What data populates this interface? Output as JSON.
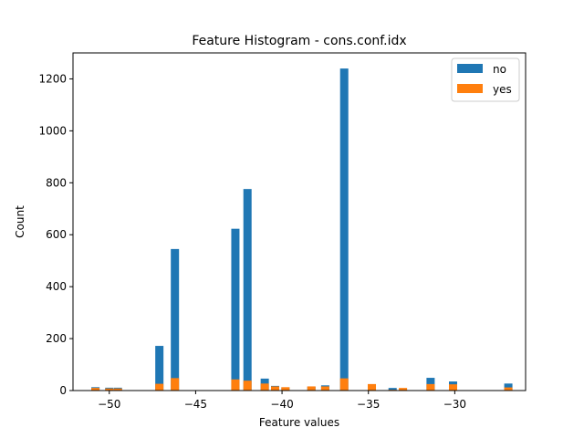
{
  "chart_data": {
    "type": "bar",
    "title": "Feature Histogram - cons.conf.idx",
    "xlabel": "Feature values",
    "ylabel": "Count",
    "xlim": [
      -52.1,
      -25.9
    ],
    "ylim": [
      0,
      1300
    ],
    "xticks": [
      -50,
      -45,
      -40,
      -35,
      -30
    ],
    "xtick_labels": [
      "−50",
      "−45",
      "−40",
      "−35",
      "−30"
    ],
    "yticks": [
      0,
      200,
      400,
      600,
      800,
      1000,
      1200
    ],
    "legend_position": "top-right",
    "grid": false,
    "series": [
      {
        "name": "no",
        "color": "#1f77b4",
        "points": [
          {
            "x": -50.8,
            "y": 13
          },
          {
            "x": -50.0,
            "y": 11
          },
          {
            "x": -49.5,
            "y": 11
          },
          {
            "x": -47.1,
            "y": 172
          },
          {
            "x": -46.2,
            "y": 545
          },
          {
            "x": -42.7,
            "y": 623
          },
          {
            "x": -42.0,
            "y": 776
          },
          {
            "x": -41.0,
            "y": 46
          },
          {
            "x": -40.4,
            "y": 18
          },
          {
            "x": -39.8,
            "y": 12
          },
          {
            "x": -38.3,
            "y": 15
          },
          {
            "x": -37.5,
            "y": 20
          },
          {
            "x": -36.4,
            "y": 1240
          },
          {
            "x": -34.8,
            "y": 5
          },
          {
            "x": -33.6,
            "y": 10
          },
          {
            "x": -33.0,
            "y": 4
          },
          {
            "x": -31.4,
            "y": 49
          },
          {
            "x": -30.1,
            "y": 35
          },
          {
            "x": -26.9,
            "y": 27
          }
        ]
      },
      {
        "name": "yes",
        "color": "#ff7f0e",
        "points": [
          {
            "x": -50.8,
            "y": 10
          },
          {
            "x": -50.0,
            "y": 8
          },
          {
            "x": -49.5,
            "y": 8
          },
          {
            "x": -47.1,
            "y": 26
          },
          {
            "x": -46.2,
            "y": 48
          },
          {
            "x": -42.7,
            "y": 43
          },
          {
            "x": -42.0,
            "y": 38
          },
          {
            "x": -41.0,
            "y": 27
          },
          {
            "x": -40.4,
            "y": 16
          },
          {
            "x": -39.8,
            "y": 13
          },
          {
            "x": -38.3,
            "y": 16
          },
          {
            "x": -37.5,
            "y": 16
          },
          {
            "x": -36.4,
            "y": 47
          },
          {
            "x": -34.8,
            "y": 25
          },
          {
            "x": -33.6,
            "y": 3
          },
          {
            "x": -33.0,
            "y": 10
          },
          {
            "x": -31.4,
            "y": 25
          },
          {
            "x": -30.1,
            "y": 24
          },
          {
            "x": -26.9,
            "y": 12
          }
        ]
      }
    ]
  }
}
